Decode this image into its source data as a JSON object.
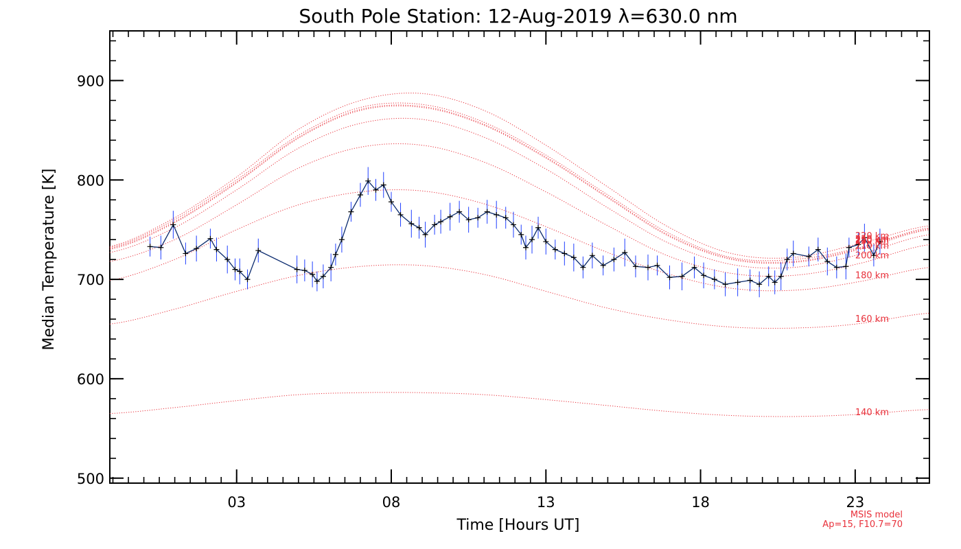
{
  "chart_data": {
    "type": "line",
    "title": "South Pole Station: 12-Aug-2019 λ=630.0 nm",
    "xlabel": "Time [Hours UT]",
    "ylabel": "Median Temperature [K]",
    "xlim": [
      22.9,
      49.4
    ],
    "ylim": [
      495,
      950
    ],
    "x_ticks": [
      27,
      32,
      37,
      42,
      47
    ],
    "x_tick_labels": [
      "03",
      "08",
      "13",
      "18",
      "23"
    ],
    "y_ticks": [
      500,
      600,
      700,
      800,
      900
    ],
    "y_tick_labels": [
      "500",
      "600",
      "700",
      "800",
      "900"
    ],
    "measured": {
      "name": "Median temperature (630.0 nm)",
      "color": "#0a2a6e",
      "errorbar_color": "#1f3fff",
      "x": [
        24.2,
        24.55,
        24.95,
        25.35,
        25.7,
        26.15,
        26.35,
        26.7,
        26.95,
        27.1,
        27.35,
        27.7,
        28.95,
        29.2,
        29.45,
        29.6,
        29.8,
        30.05,
        30.2,
        30.4,
        30.7,
        31.0,
        31.25,
        31.5,
        31.75,
        32.0,
        32.3,
        32.65,
        32.9,
        33.1,
        33.4,
        33.6,
        33.9,
        34.2,
        34.5,
        34.8,
        35.1,
        35.4,
        35.7,
        35.95,
        36.2,
        36.35,
        36.55,
        36.75,
        37.0,
        37.3,
        37.6,
        37.9,
        38.2,
        38.5,
        38.85,
        39.2,
        39.55,
        39.9,
        40.3,
        40.6,
        41.0,
        41.4,
        41.8,
        42.1,
        42.45,
        42.8,
        43.2,
        43.6,
        43.9,
        44.2,
        44.4,
        44.6,
        44.8,
        45.0,
        45.5,
        45.8,
        46.1,
        46.4,
        46.7,
        46.8,
        47.1,
        47.3,
        47.6,
        47.8
      ],
      "y": [
        733,
        732,
        755,
        726,
        731,
        741,
        730,
        720,
        710,
        708,
        700,
        729,
        710,
        709,
        705,
        698,
        703,
        712,
        725,
        740,
        768,
        785,
        799,
        790,
        795,
        778,
        765,
        756,
        752,
        745,
        755,
        758,
        763,
        768,
        760,
        762,
        768,
        765,
        762,
        755,
        745,
        732,
        740,
        752,
        738,
        730,
        726,
        722,
        712,
        724,
        714,
        720,
        727,
        713,
        712,
        714,
        702,
        703,
        712,
        704,
        700,
        695,
        697,
        699,
        695,
        703,
        697,
        703,
        720,
        726,
        723,
        730,
        718,
        712,
        713,
        732,
        735,
        742,
        724,
        738
      ]
    },
    "model_series": [
      {
        "name": "250 km",
        "color": "#e8303a",
        "x": [
          22.9,
          25,
          27,
          29,
          31,
          33,
          35,
          37,
          39,
          41,
          43,
          45,
          47,
          49.4
        ],
        "y": [
          732,
          760,
          800,
          845,
          873,
          876,
          858,
          825,
          785,
          746,
          722,
          720,
          731,
          752
        ]
      },
      {
        "name": "240 km",
        "color": "#e8303a",
        "x": [
          22.9,
          25,
          27,
          29,
          31,
          33,
          35,
          37,
          39,
          41,
          43,
          45,
          47,
          49.4
        ],
        "y": [
          731,
          758,
          798,
          843,
          871,
          874,
          856,
          823,
          783,
          744,
          721,
          718,
          730,
          751
        ]
      },
      {
        "name": "230 km",
        "color": "#e8303a",
        "x": [
          22.9,
          25,
          27,
          29,
          31,
          33,
          35,
          37,
          39,
          41,
          43,
          45,
          47,
          49.4
        ],
        "y": [
          730,
          757,
          797,
          842,
          870,
          873,
          855,
          822,
          782,
          743,
          720,
          717,
          729,
          750
        ]
      },
      {
        "name": "220 km",
        "color": "#e8303a",
        "x": [
          22.9,
          25,
          27,
          29,
          31,
          33,
          35,
          37,
          39,
          41,
          43,
          45,
          47,
          49.4
        ],
        "y": [
          733,
          762,
          803,
          851,
          880,
          887,
          870,
          835,
          793,
          752,
          726,
          722,
          735,
          754
        ]
      },
      {
        "name": "210 km",
        "color": "#e8303a",
        "x": [
          22.9,
          25,
          27,
          29,
          31,
          33,
          35,
          37,
          39,
          41,
          43,
          45,
          47,
          49.4
        ],
        "y": [
          727,
          752,
          790,
          832,
          857,
          861,
          843,
          811,
          772,
          736,
          715,
          712,
          724,
          745
        ]
      },
      {
        "name": "200 km",
        "color": "#e8303a",
        "x": [
          22.9,
          25,
          27,
          29,
          31,
          33,
          35,
          37,
          39,
          41,
          43,
          45,
          47,
          49.4
        ],
        "y": [
          718,
          740,
          775,
          812,
          833,
          835,
          818,
          788,
          754,
          723,
          706,
          704,
          715,
          735
        ]
      },
      {
        "name": "180 km",
        "color": "#e8303a",
        "x": [
          22.9,
          25,
          27,
          29,
          31,
          33,
          35,
          37,
          39,
          41,
          43,
          45,
          47,
          49.4
        ],
        "y": [
          699,
          720,
          750,
          775,
          788,
          789,
          776,
          753,
          727,
          705,
          691,
          689,
          697,
          712
        ]
      },
      {
        "name": "160 km",
        "color": "#e8303a",
        "x": [
          22.9,
          25,
          27,
          29,
          31,
          33,
          35,
          37,
          39,
          41,
          43,
          45,
          47,
          49.4
        ],
        "y": [
          655,
          670,
          688,
          704,
          713,
          714,
          705,
          688,
          671,
          659,
          652,
          651,
          655,
          666
        ]
      },
      {
        "name": "140 km",
        "color": "#e8303a",
        "x": [
          22.9,
          25,
          27,
          29,
          31,
          33,
          35,
          37,
          39,
          41,
          43,
          45,
          47,
          49.4
        ],
        "y": [
          565,
          571,
          578,
          584,
          586,
          586,
          584,
          579,
          573,
          567,
          563,
          562,
          564,
          569
        ]
      }
    ],
    "altitude_labels": [
      "250 km",
      "240 km",
      "230 km",
      "220 km",
      "210 km",
      "200 km",
      "180 km",
      "160 km",
      "140 km"
    ],
    "notes": [
      "MSIS model",
      "Ap=15, F10.7=70"
    ]
  }
}
